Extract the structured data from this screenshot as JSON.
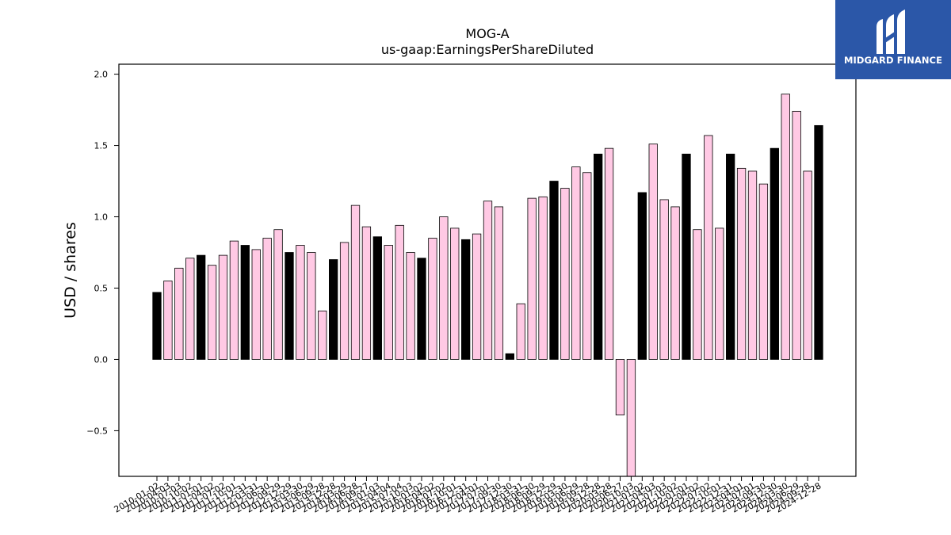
{
  "logo": {
    "text": "MIDGARD FINANCE",
    "icon": "midgard-logo-icon",
    "background": "#2b57a8"
  },
  "colors": {
    "annual": "#000000",
    "quarterly": "#ffc9e4",
    "edge": "#000000"
  },
  "chart_data": {
    "type": "bar",
    "title": "MOG-A",
    "subtitle": "us-gaap:EarningsPerShareDiluted",
    "xlabel": "",
    "ylabel": "USD / shares",
    "ylim": [
      -0.82,
      2.07
    ],
    "yticks": [
      -0.5,
      0.0,
      0.5,
      1.0,
      1.5,
      2.0
    ],
    "ytick_labels": [
      "−0.5",
      "0.0",
      "0.5",
      "1.0",
      "1.5",
      "2.0"
    ],
    "grid": false,
    "legend": "none",
    "xtick_labels": [
      "2010-01-02",
      "2010-04-03",
      "2010-07-03",
      "2010-10-02",
      "2011-01-01",
      "2011-04-02",
      "2011-07-02",
      "2011-10-01",
      "2011-12-31",
      "2012-03-31",
      "2012-06-30",
      "2012-09-29",
      "2012-12-29",
      "2013-03-30",
      "2013-06-29",
      "2013-09-28",
      "2013-12-28",
      "2014-03-29",
      "2014-06-28",
      "2014-09-27",
      "2015-01-03",
      "2015-04-04",
      "2015-07-04",
      "2015-10-03",
      "2016-01-02",
      "2016-04-02",
      "2016-07-02",
      "2016-10-01",
      "2016-12-31",
      "2017-04-01",
      "2017-07-01",
      "2017-09-30",
      "2017-12-30",
      "2018-03-31",
      "2018-06-30",
      "2018-09-29",
      "2018-12-29",
      "2019-03-30",
      "2019-06-29",
      "2019-09-28",
      "2019-12-28",
      "2020-03-28",
      "2020-06-27",
      "2020-10-03",
      "2021-01-02",
      "2021-04-03",
      "2021-07-03",
      "2021-10-02",
      "2022-01-01",
      "2022-04-02",
      "2022-07-02",
      "2022-10-01",
      "2022-12-31",
      "2023-04-01",
      "2023-07-01",
      "2023-09-30",
      "2023-12-30",
      "2024-03-30",
      "2024-06-29",
      "2024-09-28",
      "2024-12-28"
    ],
    "series": [
      {
        "values": [
          0.47,
          0.55,
          0.64,
          0.71,
          0.73,
          0.66,
          0.73,
          0.83,
          0.8,
          0.77,
          0.85,
          0.91,
          0.75,
          0.8,
          0.75,
          0.34,
          0.7,
          0.82,
          1.08,
          0.93,
          0.86,
          0.8,
          0.94,
          0.75,
          0.71,
          0.85,
          1.0,
          0.92,
          0.84,
          0.88,
          1.11,
          1.07,
          0.04,
          0.39,
          1.13,
          1.14,
          1.25,
          1.2,
          1.35,
          1.31,
          1.44,
          1.48,
          -0.39,
          -0.82,
          1.17,
          1.51,
          1.12,
          1.07,
          1.44,
          0.91,
          1.57,
          0.92,
          1.44,
          1.34,
          1.32,
          1.23,
          1.48,
          1.86,
          1.74,
          1.32,
          1.64
        ],
        "period": [
          "A",
          "Q",
          "Q",
          "Q",
          "A",
          "Q",
          "Q",
          "Q",
          "A",
          "Q",
          "Q",
          "Q",
          "A",
          "Q",
          "Q",
          "Q",
          "A",
          "Q",
          "Q",
          "Q",
          "A",
          "Q",
          "Q",
          "Q",
          "A",
          "Q",
          "Q",
          "Q",
          "A",
          "Q",
          "Q",
          "Q",
          "A",
          "Q",
          "Q",
          "Q",
          "A",
          "Q",
          "Q",
          "Q",
          "A",
          "Q",
          "Q",
          "Q",
          "A",
          "Q",
          "Q",
          "Q",
          "A",
          "Q",
          "Q",
          "Q",
          "A",
          "Q",
          "Q",
          "Q",
          "A",
          "Q",
          "Q",
          "Q",
          "A"
        ]
      }
    ]
  }
}
